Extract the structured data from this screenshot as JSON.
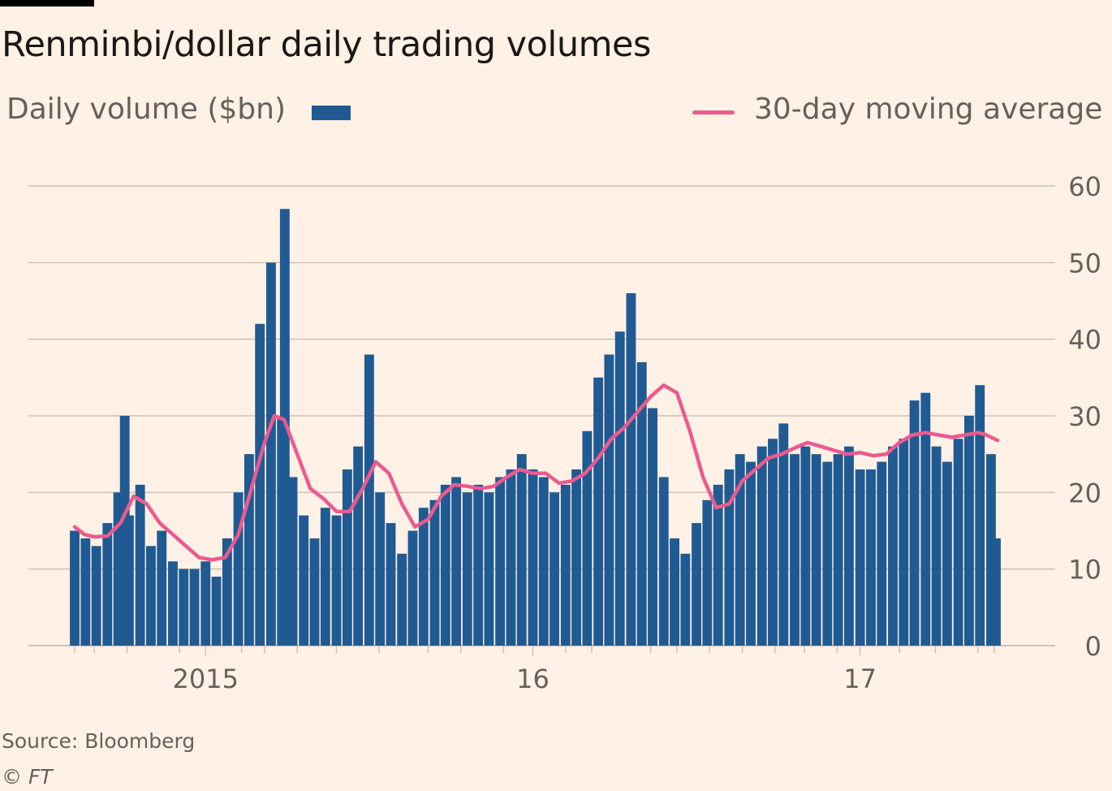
{
  "title": "Renminbi/dollar daily trading volumes",
  "legend": {
    "bar_label": "Daily volume ($bn)",
    "line_label": "30-day moving average"
  },
  "source": "Source: Bloomberg",
  "credit": "© FT",
  "colors": {
    "background": "#fff1e5",
    "bars": "#205a93",
    "line": "#ec5a8f",
    "grid": "#ccc1b7",
    "text": "#66605c"
  },
  "chart_data": {
    "type": "bar",
    "title": "Renminbi/dollar daily trading volumes",
    "ylim": [
      0,
      60
    ],
    "y_ticks": [
      0,
      10,
      20,
      30,
      40,
      50,
      60
    ],
    "y_tick_labels": [
      "0",
      "10",
      "20",
      "30",
      "40",
      "50",
      "60"
    ],
    "y_axis_position": "right",
    "grid": true,
    "legend_position": "top",
    "x_range": [
      2014.6,
      2017.42
    ],
    "x_tick_labels": [
      {
        "x": 2015.0,
        "label": "2015"
      },
      {
        "x": 2016.0,
        "label": "16"
      },
      {
        "x": 2017.0,
        "label": "17"
      }
    ],
    "x_minor_ticks": [
      2014.6,
      2014.66,
      2014.76,
      2014.92,
      2015.11,
      2015.18,
      2015.28,
      2015.4,
      2015.53,
      2015.68,
      2015.78,
      2015.91,
      2016.1,
      2016.18,
      2016.36,
      2016.44,
      2016.54,
      2016.64,
      2016.74,
      2016.83,
      2016.93,
      2017.12,
      2017.23,
      2017.36,
      2017.41
    ],
    "series": [
      {
        "name": "Daily volume ($bn)",
        "type": "bar",
        "x": [
          2014.6,
          2014.633,
          2014.666,
          2014.7,
          2014.733,
          2014.753,
          2014.766,
          2014.8,
          2014.833,
          2014.866,
          2014.9,
          2014.933,
          2014.966,
          2015.0,
          2015.033,
          2015.066,
          2015.1,
          2015.133,
          2015.166,
          2015.2,
          2015.233,
          2015.242,
          2015.266,
          2015.3,
          2015.333,
          2015.366,
          2015.4,
          2015.433,
          2015.466,
          2015.5,
          2015.533,
          2015.566,
          2015.6,
          2015.633,
          2015.666,
          2015.7,
          2015.733,
          2015.766,
          2015.8,
          2015.833,
          2015.866,
          2015.9,
          2015.933,
          2015.966,
          2016.0,
          2016.033,
          2016.066,
          2016.1,
          2016.133,
          2016.166,
          2016.2,
          2016.233,
          2016.266,
          2016.3,
          2016.333,
          2016.366,
          2016.4,
          2016.433,
          2016.466,
          2016.5,
          2016.533,
          2016.566,
          2016.6,
          2016.633,
          2016.666,
          2016.7,
          2016.733,
          2016.766,
          2016.8,
          2016.833,
          2016.866,
          2016.9,
          2016.933,
          2016.966,
          2017.0,
          2017.033,
          2017.066,
          2017.1,
          2017.133,
          2017.166,
          2017.2,
          2017.233,
          2017.266,
          2017.3,
          2017.333,
          2017.366,
          2017.4,
          2017.415
        ],
        "values": [
          15,
          14,
          13,
          16,
          20,
          30,
          17,
          21,
          13,
          15,
          11,
          10,
          10,
          11,
          9,
          14,
          20,
          25,
          42,
          50,
          30,
          57,
          22,
          17,
          14,
          18,
          17,
          23,
          26,
          38,
          20,
          16,
          12,
          15,
          18,
          19,
          21,
          22,
          20,
          21,
          20,
          22,
          23,
          25,
          23,
          22,
          20,
          21,
          23,
          28,
          35,
          38,
          41,
          46,
          37,
          31,
          22,
          14,
          12,
          16,
          19,
          21,
          23,
          25,
          24,
          26,
          27,
          29,
          25,
          26,
          25,
          24,
          25,
          26,
          23,
          23,
          24,
          26,
          27,
          32,
          33,
          26,
          24,
          27,
          30,
          34,
          25,
          14
        ]
      },
      {
        "name": "30-day moving average",
        "type": "line",
        "x": [
          2014.6,
          2014.63,
          2014.66,
          2014.7,
          2014.74,
          2014.78,
          2014.82,
          2014.86,
          2014.9,
          2014.94,
          2014.98,
          2015.02,
          2015.06,
          2015.1,
          2015.14,
          2015.18,
          2015.21,
          2015.24,
          2015.28,
          2015.32,
          2015.36,
          2015.4,
          2015.44,
          2015.48,
          2015.52,
          2015.56,
          2015.6,
          2015.64,
          2015.68,
          2015.72,
          2015.76,
          2015.8,
          2015.84,
          2015.88,
          2015.92,
          2015.96,
          2016.0,
          2016.04,
          2016.08,
          2016.12,
          2016.16,
          2016.2,
          2016.24,
          2016.28,
          2016.32,
          2016.36,
          2016.4,
          2016.44,
          2016.48,
          2016.52,
          2016.56,
          2016.6,
          2016.64,
          2016.68,
          2016.72,
          2016.76,
          2016.8,
          2016.84,
          2016.88,
          2016.92,
          2016.96,
          2017.0,
          2017.04,
          2017.08,
          2017.12,
          2017.16,
          2017.2,
          2017.24,
          2017.28,
          2017.32,
          2017.36,
          2017.38,
          2017.4,
          2017.42
        ],
        "values": [
          15.5,
          14.5,
          14.2,
          14.3,
          16,
          19.5,
          18.5,
          16,
          14.5,
          13,
          11.5,
          11.2,
          11.5,
          14.5,
          20.5,
          26.5,
          30,
          29.5,
          25,
          20.5,
          19.2,
          17.5,
          17.5,
          20.5,
          24,
          22.5,
          18.5,
          15.5,
          16.5,
          19.5,
          21,
          20.8,
          20.5,
          20.8,
          22,
          23,
          22.5,
          22.5,
          21.2,
          21.5,
          22.5,
          24.5,
          27,
          28.5,
          30.5,
          32.5,
          34,
          33,
          28,
          22,
          18,
          18.5,
          21.5,
          23,
          24.5,
          25,
          25.8,
          26.5,
          26,
          25.5,
          25,
          25.2,
          24.8,
          25,
          26.5,
          27.5,
          27.8,
          27.5,
          27.2,
          27.5,
          27.8,
          27.6,
          27.2,
          26.8
        ]
      }
    ]
  }
}
